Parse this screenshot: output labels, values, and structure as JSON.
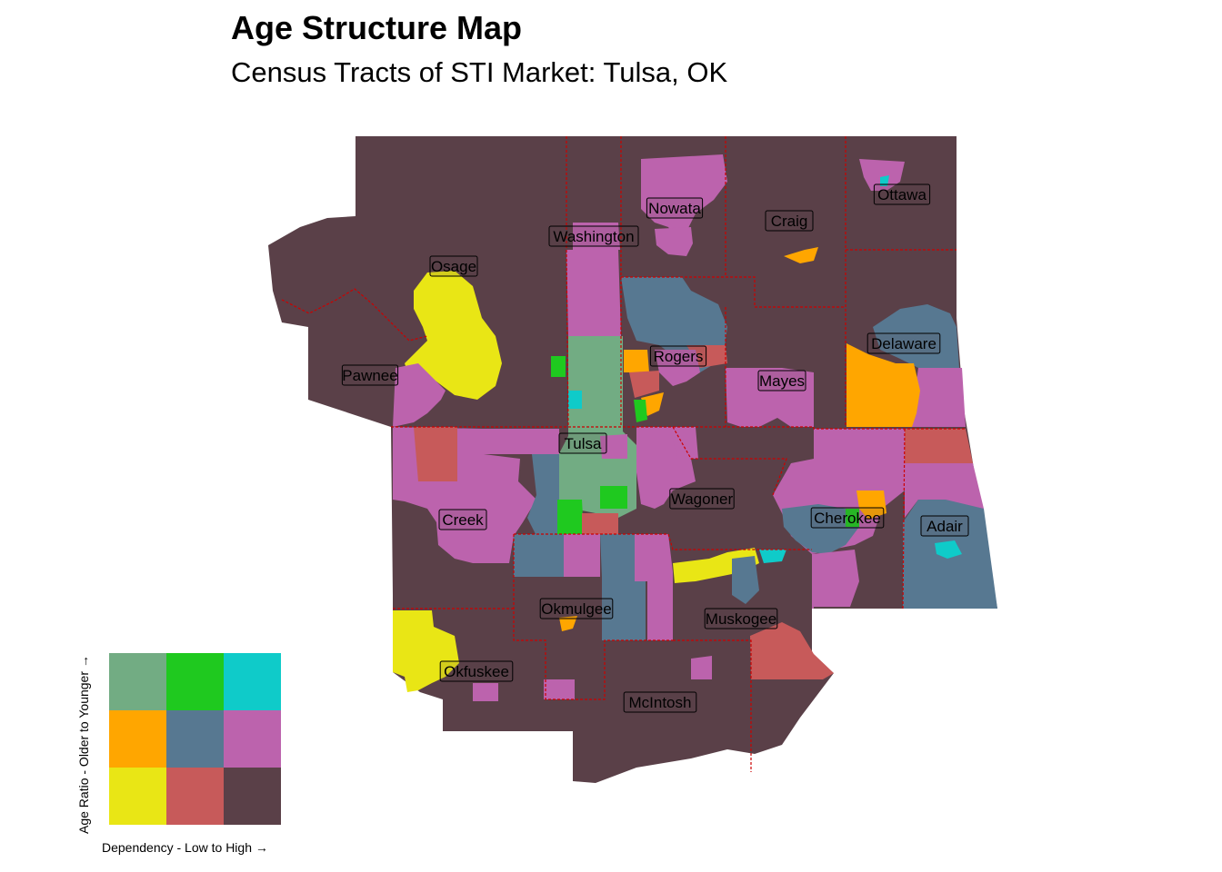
{
  "title": "Age Structure Map",
  "subtitle": "Census Tracts of STI Market: Tulsa, OK",
  "palette": {
    "base": "#5a4048",
    "magenta": "#bc63ad",
    "steel": "#577891",
    "yellow": "#e9e615",
    "orange": "#ffa600",
    "green": "#1fc91f",
    "cyan": "#0fcbc9",
    "sage": "#72ac83",
    "salmon": "#c75a5a",
    "border": "#cc0000"
  },
  "counties": [
    {
      "id": "ottawa",
      "label": "Ottawa"
    },
    {
      "id": "nowata",
      "label": "Nowata"
    },
    {
      "id": "craig",
      "label": "Craig"
    },
    {
      "id": "washington",
      "label": "Washington"
    },
    {
      "id": "osage",
      "label": "Osage"
    },
    {
      "id": "delaware",
      "label": "Delaware"
    },
    {
      "id": "rogers",
      "label": "Rogers"
    },
    {
      "id": "mayes",
      "label": "Mayes"
    },
    {
      "id": "pawnee",
      "label": "Pawnee"
    },
    {
      "id": "tulsa",
      "label": "Tulsa"
    },
    {
      "id": "wagoner",
      "label": "Wagoner"
    },
    {
      "id": "cherokee",
      "label": "Cherokee"
    },
    {
      "id": "adair",
      "label": "Adair"
    },
    {
      "id": "creek",
      "label": "Creek"
    },
    {
      "id": "okmulgee",
      "label": "Okmulgee"
    },
    {
      "id": "muskogee",
      "label": "Muskogee"
    },
    {
      "id": "okfuskee",
      "label": "Okfuskee"
    },
    {
      "id": "mcintosh",
      "label": "McIntosh"
    }
  ],
  "legend": {
    "y_label": "Age Ratio - Older to Younger →",
    "x_label": "Dependency - Low to High →",
    "grid": [
      [
        "#72ac83",
        "#1fc91f",
        "#0fcbc9"
      ],
      [
        "#ffa600",
        "#577891",
        "#bc63ad"
      ],
      [
        "#e9e615",
        "#c75a5a",
        "#5a4048"
      ]
    ]
  }
}
